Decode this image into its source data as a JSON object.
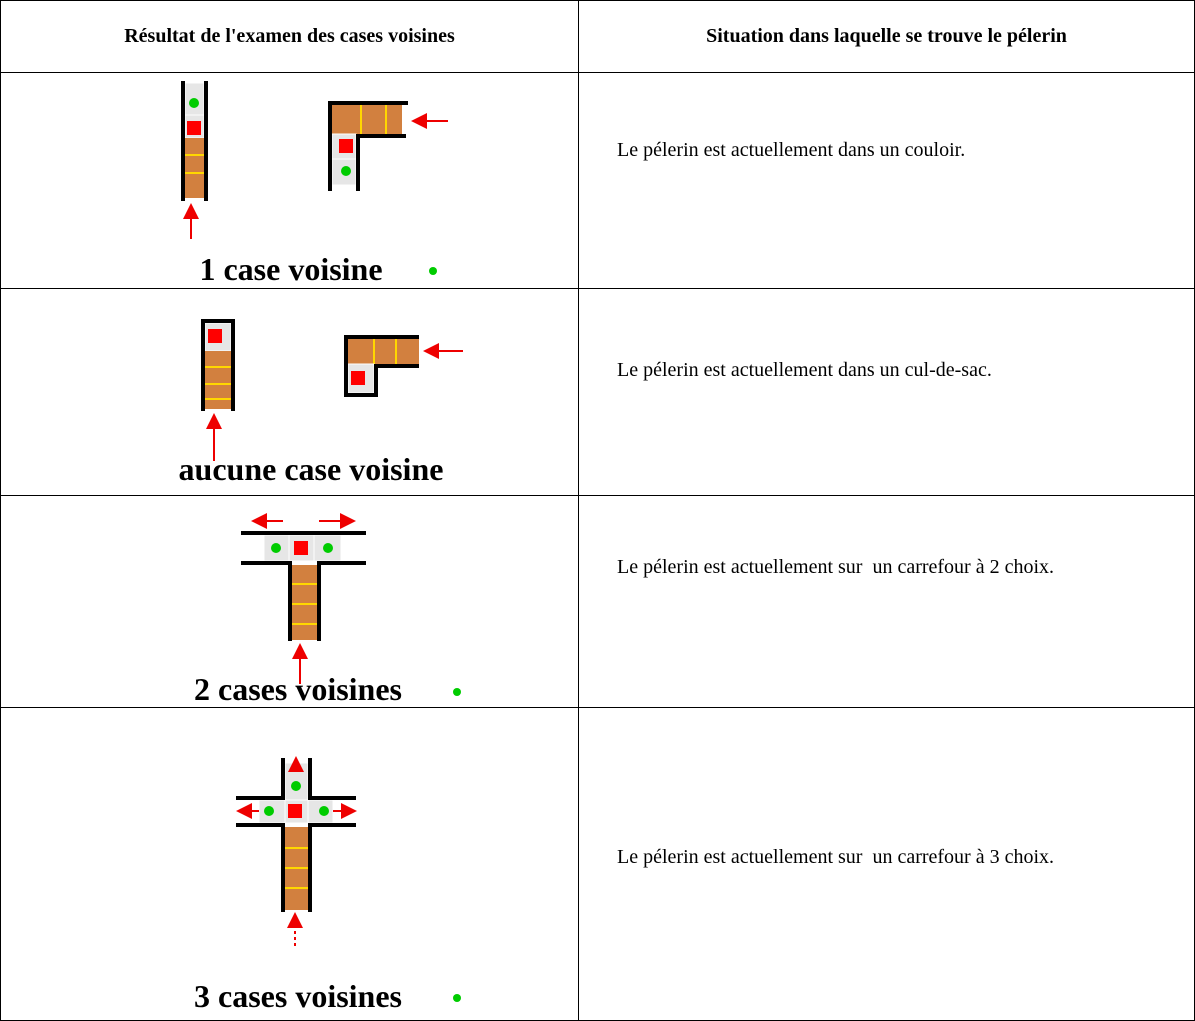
{
  "table": {
    "headers": [
      "Résultat de l'examen des cases voisines",
      "Situation dans laquelle se trouve le pélerin"
    ],
    "rows": [
      {
        "caption": "1 case voisine",
        "situation": "Le pélerin est actuellement dans un couloir."
      },
      {
        "caption": "aucune case voisine",
        "situation": "Le pélerin est actuellement dans un cul-de-sac."
      },
      {
        "caption": "2 cases voisines",
        "situation": "Le pélerin est actuellement sur  un carrefour à 2 choix."
      },
      {
        "caption": "3 cases voisines",
        "situation": "Le pélerin est actuellement sur  un carrefour à 3 choix."
      }
    ]
  }
}
